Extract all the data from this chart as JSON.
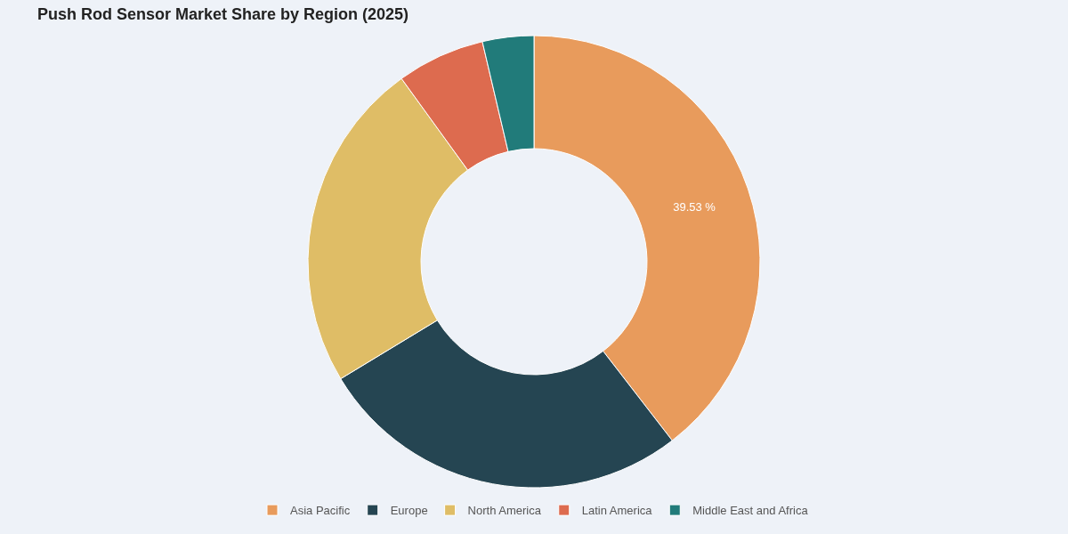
{
  "chart_data": {
    "type": "donut",
    "title": "Push Rod Sensor Market Share by Region (2025)",
    "categories": [
      "Asia Pacific",
      "Europe",
      "North America",
      "Latin America",
      "Middle East and Africa"
    ],
    "values": [
      39.53,
      26.8,
      23.7,
      6.3,
      3.67
    ],
    "colors": [
      "#e89b5c",
      "#254552",
      "#dfbd66",
      "#dd6b4f",
      "#217b7a"
    ],
    "value_labels": [
      "39.53 %",
      null,
      null,
      null,
      null
    ],
    "legend": "bottom"
  }
}
